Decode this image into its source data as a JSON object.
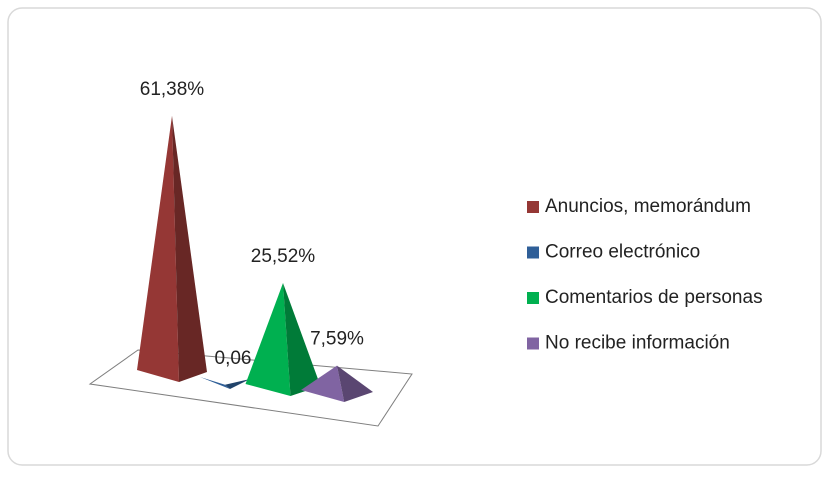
{
  "chart_data": {
    "type": "pyramid3d",
    "categories": [
      "Anuncios, memorándum",
      "Correo electrónico",
      "Comentarios de personas",
      "No recibe información"
    ],
    "series": [
      {
        "values": [
          61.38,
          0.06,
          25.52,
          7.59
        ],
        "value_labels": [
          "61,38%",
          "0,06",
          "25,52%",
          "7,59%"
        ],
        "colors": [
          "#953735",
          "#2f5f98",
          "#00b050",
          "#8064a2"
        ]
      }
    ],
    "legend": "right"
  }
}
